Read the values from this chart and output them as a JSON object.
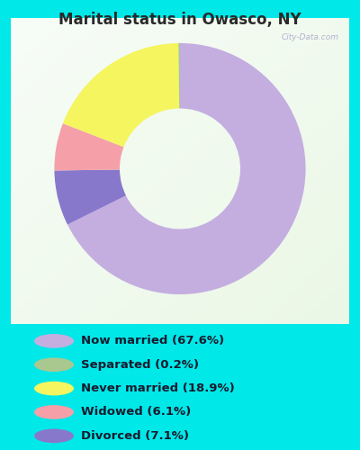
{
  "title": "Marital status in Owasco, NY",
  "slices": [
    67.6,
    7.1,
    6.1,
    18.9,
    0.2
  ],
  "colors": [
    "#c4aee0",
    "#8878cc",
    "#f5a0a8",
    "#f5f560",
    "#a8c890"
  ],
  "labels": [
    "Now married (67.6%)",
    "Separated (0.2%)",
    "Never married (18.9%)",
    "Widowed (6.1%)",
    "Divorced (7.1%)"
  ],
  "legend_colors": [
    "#c4aee0",
    "#a8c890",
    "#f5f560",
    "#f5a0a8",
    "#8878cc"
  ],
  "bg_outer": "#00e8e8",
  "bg_chart_top_left": "#e8f5e8",
  "bg_chart_bottom_right": "#c8e8d0",
  "title_color": "#2a2a2a",
  "watermark": "City-Data.com",
  "donut_width": 0.52
}
